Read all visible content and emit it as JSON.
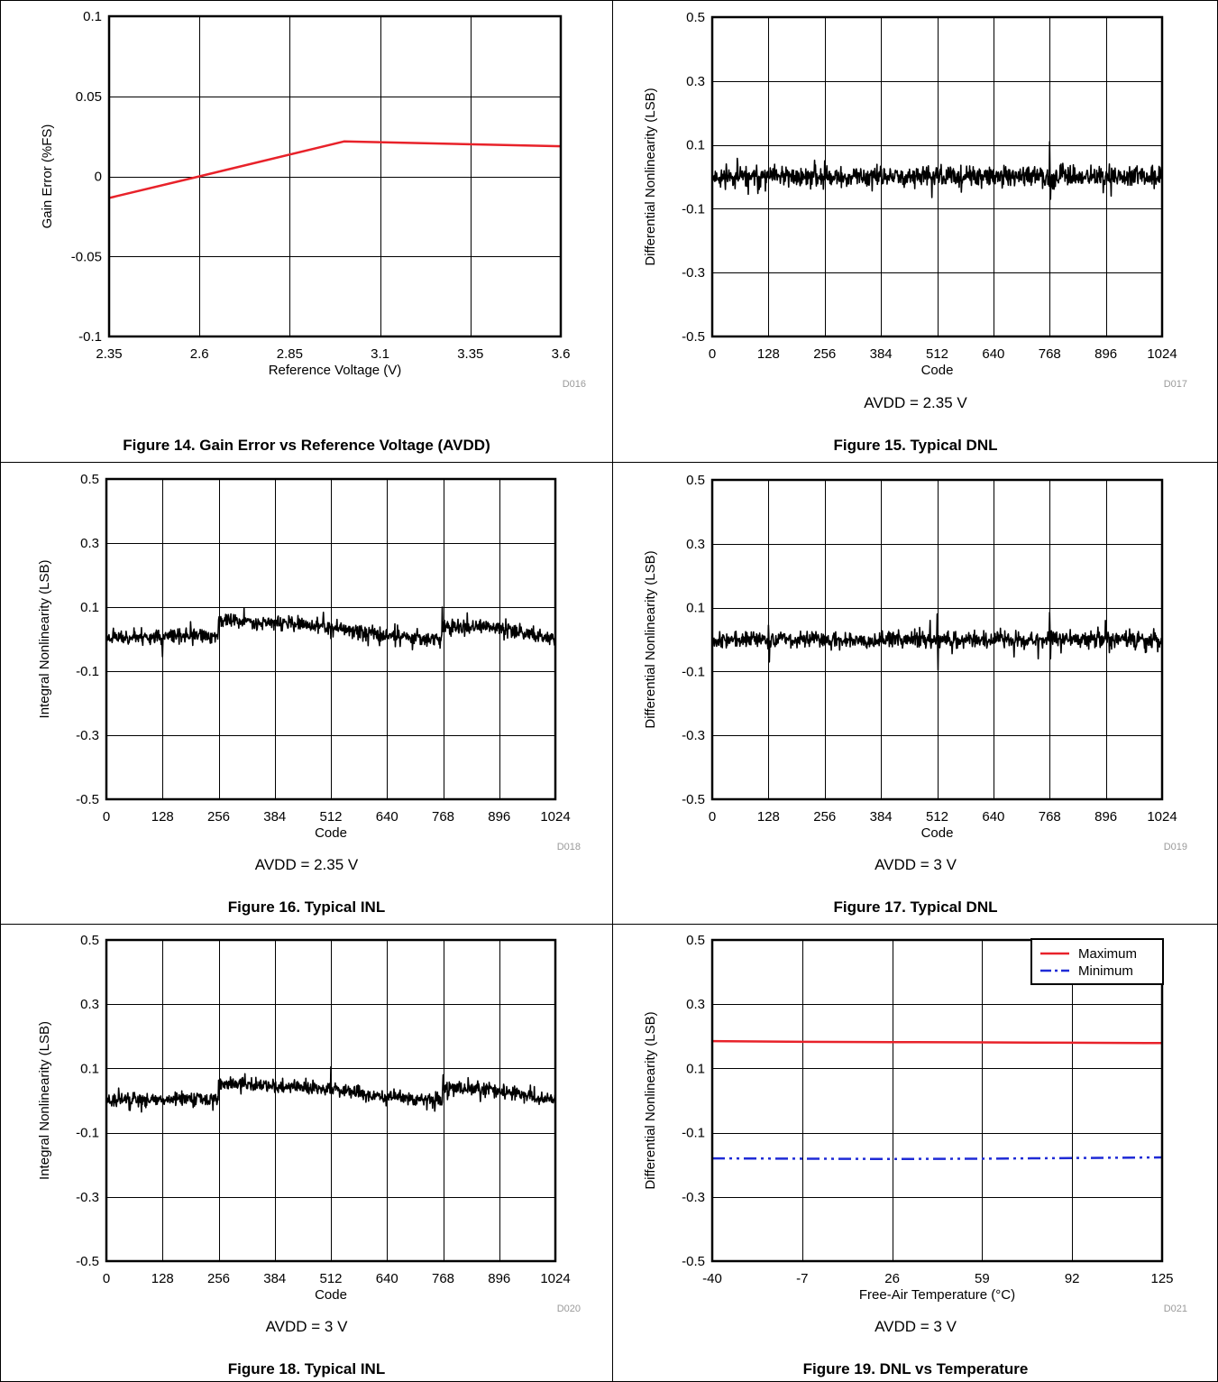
{
  "charts": [
    {
      "type": "line",
      "figure_id": "D016",
      "caption": "Figure 14. Gain Error vs Reference Voltage (AVDD)",
      "condition": "",
      "xlabel": "Reference Voltage (V)",
      "ylabel": "Gain Error (%FS)",
      "xlim": [
        2.35,
        3.6
      ],
      "ylim": [
        -0.1,
        0.1
      ],
      "xticks": [
        2.35,
        2.6,
        2.85,
        3.1,
        3.35,
        3.6
      ],
      "xtick_labels": [
        "2.35",
        "2.6",
        "2.85",
        "3.1",
        "3.35",
        "3.6"
      ],
      "yticks": [
        -0.1,
        -0.05,
        0,
        0.05,
        0.1
      ],
      "ytick_labels": [
        "-0.1",
        "-0.05",
        "0",
        "0.05",
        "0.1"
      ],
      "grid": true,
      "series": [
        {
          "name": "",
          "color": "#e8222a",
          "style": "solid",
          "kind": "points",
          "x": [
            2.35,
            2.6,
            3.0,
            3.6
          ],
          "y": [
            -0.0135,
            0.0,
            0.0218,
            0.0188
          ]
        }
      ]
    },
    {
      "type": "line",
      "figure_id": "D017",
      "caption": "Figure 15. Typical DNL",
      "condition": "AVDD = 2.35 V",
      "xlabel": "Code",
      "ylabel": "Differential Nonlinearity (LSB)",
      "xlim": [
        0,
        1024
      ],
      "ylim": [
        -0.5,
        0.5
      ],
      "xticks": [
        0,
        128,
        256,
        384,
        512,
        640,
        768,
        896,
        1024
      ],
      "xtick_labels": [
        "0",
        "128",
        "256",
        "384",
        "512",
        "640",
        "768",
        "896",
        "1024"
      ],
      "yticks": [
        -0.5,
        -0.3,
        -0.1,
        0.1,
        0.3,
        0.5
      ],
      "ytick_labels": [
        "-0.5",
        "-0.3",
        "-0.1",
        "0.1",
        "0.3",
        "0.5"
      ],
      "grid": true,
      "series": [
        {
          "name": "",
          "color": "#000000",
          "style": "solid",
          "kind": "noise",
          "seed": 11,
          "baseline": [
            [
              0,
              0.0
            ],
            [
              1024,
              0.0
            ]
          ],
          "amplitude": 0.022,
          "spikes": [
            [
              32,
              0.04
            ],
            [
              256,
              0.05
            ],
            [
              768,
              0.11
            ],
            [
              770,
              -0.07
            ]
          ]
        }
      ]
    },
    {
      "type": "line",
      "figure_id": "D018",
      "caption": "Figure 16. Typical INL",
      "condition": "AVDD = 2.35 V",
      "xlabel": "Code",
      "ylabel": "Integral Nonlinearity (LSB)",
      "xlim": [
        0,
        1024
      ],
      "ylim": [
        -0.5,
        0.5
      ],
      "xticks": [
        0,
        128,
        256,
        384,
        512,
        640,
        768,
        896,
        1024
      ],
      "xtick_labels": [
        "0",
        "128",
        "256",
        "384",
        "512",
        "640",
        "768",
        "896",
        "1024"
      ],
      "yticks": [
        -0.5,
        -0.3,
        -0.1,
        0.1,
        0.3,
        0.5
      ],
      "ytick_labels": [
        "-0.5",
        "-0.3",
        "-0.1",
        "0.1",
        "0.3",
        "0.5"
      ],
      "grid": true,
      "series": [
        {
          "name": "",
          "color": "#000000",
          "style": "solid",
          "kind": "noise",
          "seed": 23,
          "amplitude": 0.016,
          "baseline": [
            [
              0,
              0.005
            ],
            [
              255,
              0.01
            ],
            [
              256,
              0.06
            ],
            [
              400,
              0.05
            ],
            [
              520,
              0.035
            ],
            [
              640,
              0.012
            ],
            [
              766,
              0.0
            ],
            [
              767,
              0.04
            ],
            [
              900,
              0.035
            ],
            [
              1024,
              0.0
            ]
          ],
          "spikes": [
            [
              766,
              0.1
            ],
            [
              128,
              -0.055
            ]
          ]
        }
      ]
    },
    {
      "type": "line",
      "figure_id": "D019",
      "caption": "Figure 17. Typical DNL",
      "condition": "AVDD = 3 V",
      "xlabel": "Code",
      "ylabel": "Differential Nonlinearity (LSB)",
      "xlim": [
        0,
        1024
      ],
      "ylim": [
        -0.5,
        0.5
      ],
      "xticks": [
        0,
        128,
        256,
        384,
        512,
        640,
        768,
        896,
        1024
      ],
      "xtick_labels": [
        "0",
        "128",
        "256",
        "384",
        "512",
        "640",
        "768",
        "896",
        "1024"
      ],
      "yticks": [
        -0.5,
        -0.3,
        -0.1,
        0.1,
        0.3,
        0.5
      ],
      "ytick_labels": [
        "-0.5",
        "-0.3",
        "-0.1",
        "0.1",
        "0.3",
        "0.5"
      ],
      "grid": true,
      "series": [
        {
          "name": "",
          "color": "#000000",
          "style": "solid",
          "kind": "noise",
          "seed": 37,
          "baseline": [
            [
              0,
              0.0
            ],
            [
              1024,
              0.0
            ]
          ],
          "amplitude": 0.018,
          "spikes": [
            [
              128,
              0.045
            ],
            [
              496,
              0.06
            ],
            [
              512,
              0.08
            ],
            [
              514,
              -0.095
            ],
            [
              768,
              0.085
            ],
            [
              770,
              -0.06
            ],
            [
              130,
              -0.07
            ]
          ]
        }
      ]
    },
    {
      "type": "line",
      "figure_id": "D020",
      "caption": "Figure 18. Typical INL",
      "condition": "AVDD = 3 V",
      "xlabel": "Code",
      "ylabel": "Integral Nonlinearity (LSB)",
      "xlim": [
        0,
        1024
      ],
      "ylim": [
        -0.5,
        0.5
      ],
      "xticks": [
        0,
        128,
        256,
        384,
        512,
        640,
        768,
        896,
        1024
      ],
      "xtick_labels": [
        "0",
        "128",
        "256",
        "384",
        "512",
        "640",
        "768",
        "896",
        "1024"
      ],
      "yticks": [
        -0.5,
        -0.3,
        -0.1,
        0.1,
        0.3,
        0.5
      ],
      "ytick_labels": [
        "-0.5",
        "-0.3",
        "-0.1",
        "0.1",
        "0.3",
        "0.5"
      ],
      "grid": true,
      "series": [
        {
          "name": "",
          "color": "#000000",
          "style": "solid",
          "kind": "noise",
          "seed": 51,
          "amplitude": 0.015,
          "baseline": [
            [
              0,
              0.0
            ],
            [
              255,
              0.005
            ],
            [
              256,
              0.055
            ],
            [
              384,
              0.045
            ],
            [
              512,
              0.035
            ],
            [
              640,
              0.012
            ],
            [
              766,
              0.0
            ],
            [
              767,
              0.04
            ],
            [
              896,
              0.03
            ],
            [
              1024,
              0.0
            ]
          ],
          "spikes": [
            [
              512,
              0.105
            ],
            [
              768,
              0.08
            ]
          ]
        }
      ]
    },
    {
      "type": "line",
      "figure_id": "D021",
      "caption": "Figure 19. DNL vs Temperature",
      "condition": "AVDD = 3 V",
      "xlabel": "Free-Air Temperature (°C)",
      "ylabel": "Differential Nonlinearity (LSB)",
      "xlim": [
        -40,
        125
      ],
      "ylim": [
        -0.5,
        0.5
      ],
      "xticks": [
        -40,
        -7,
        26,
        59,
        92,
        125
      ],
      "xtick_labels": [
        "-40",
        "-7",
        "26",
        "59",
        "92",
        "125"
      ],
      "yticks": [
        -0.5,
        -0.3,
        -0.1,
        0.1,
        0.3,
        0.5
      ],
      "ytick_labels": [
        "-0.5",
        "-0.3",
        "-0.1",
        "0.1",
        "0.3",
        "0.5"
      ],
      "grid": true,
      "legend": "top-right",
      "series": [
        {
          "name": "Maximum",
          "color": "#e8222a",
          "style": "solid",
          "kind": "points",
          "x": [
            -40,
            -7,
            26,
            59,
            92,
            125
          ],
          "y": [
            0.185,
            0.183,
            0.182,
            0.181,
            0.18,
            0.179
          ]
        },
        {
          "name": "Minimum",
          "color": "#1f2bd6",
          "style": "dashdot",
          "kind": "points",
          "x": [
            -40,
            -7,
            26,
            59,
            92,
            125
          ],
          "y": [
            -0.18,
            -0.181,
            -0.182,
            -0.181,
            -0.179,
            -0.177
          ]
        }
      ]
    }
  ]
}
